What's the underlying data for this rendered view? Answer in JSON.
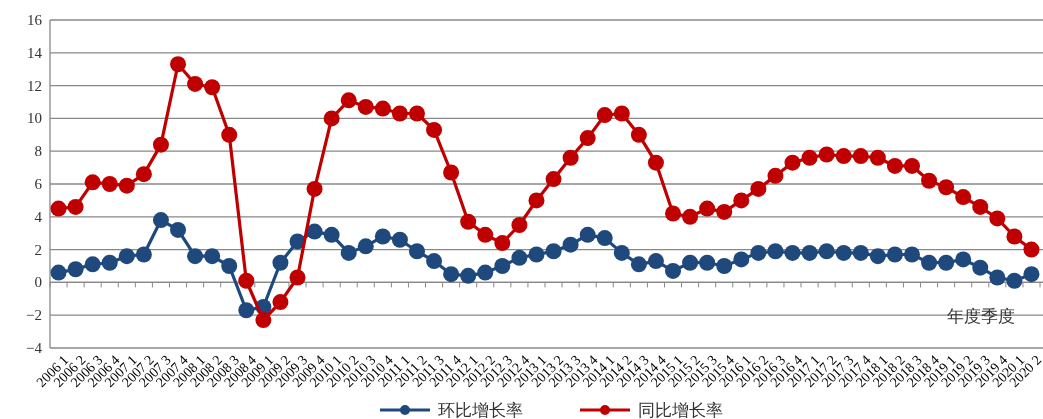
{
  "chart_data": {
    "type": "line",
    "xlabel": "年度季度",
    "categories": [
      "2006 1",
      "2006 2",
      "2006 3",
      "2006 4",
      "2007 1",
      "2007 2",
      "2007 3",
      "2007 4",
      "2008 1",
      "2008 2",
      "2008 3",
      "2008 4",
      "2009 1",
      "2009 2",
      "2009 3",
      "2009 4",
      "2010 1",
      "2010 2",
      "2010 3",
      "2010 4",
      "2011 1",
      "2011 2",
      "2011 3",
      "2011 4",
      "2012 1",
      "2012 2",
      "2012 3",
      "2012 4",
      "2013 1",
      "2013 2",
      "2013 3",
      "2013 4",
      "2014 1",
      "2014 2",
      "2014 3",
      "2014 4",
      "2015 1",
      "2015 2",
      "2015 3",
      "2015 4",
      "2016 1",
      "2016 2",
      "2016 3",
      "2016 4",
      "2017 1",
      "2017 2",
      "2017 3",
      "2017 4",
      "2018 1",
      "2018 2",
      "2018 3",
      "2018 4",
      "2019 1",
      "2019 2",
      "2019 3",
      "2019 4",
      "2020 1",
      "2020 2"
    ],
    "series": [
      {
        "name": "环比增长率",
        "color": "#1f497d",
        "values": [
          0.6,
          0.8,
          1.1,
          1.2,
          1.6,
          1.7,
          3.8,
          3.2,
          1.6,
          1.6,
          1.0,
          -1.7,
          -1.5,
          1.2,
          2.5,
          3.1,
          2.9,
          1.8,
          2.2,
          2.8,
          2.6,
          1.9,
          1.3,
          0.5,
          0.4,
          0.6,
          1.0,
          1.5,
          1.7,
          1.9,
          2.3,
          2.9,
          2.7,
          1.8,
          1.1,
          1.3,
          0.7,
          1.2,
          1.2,
          1.0,
          1.4,
          1.8,
          1.9,
          1.8,
          1.8,
          1.9,
          1.8,
          1.8,
          1.6,
          1.7,
          1.7,
          1.2,
          1.2,
          1.4,
          0.9,
          0.3,
          0.1,
          0.5
        ]
      },
      {
        "name": "同比增长率",
        "color": "#c00000",
        "values": [
          4.5,
          4.6,
          6.1,
          6.0,
          5.9,
          6.6,
          8.4,
          13.3,
          12.1,
          11.9,
          9.0,
          0.1,
          -2.3,
          -1.2,
          0.3,
          5.7,
          10.0,
          11.1,
          10.7,
          10.6,
          10.3,
          10.3,
          9.3,
          6.7,
          3.7,
          2.9,
          2.4,
          3.5,
          5.0,
          6.3,
          7.6,
          8.8,
          10.2,
          10.3,
          9.0,
          7.3,
          4.2,
          4.0,
          4.5,
          4.3,
          5.0,
          5.7,
          6.5,
          7.3,
          7.6,
          7.8,
          7.7,
          7.7,
          7.6,
          7.1,
          7.1,
          6.2,
          5.8,
          5.2,
          4.6,
          3.9,
          2.8,
          2.0
        ]
      }
    ],
    "ylim": [
      -4,
      16
    ],
    "yticks": [
      -4,
      -2,
      0,
      2,
      4,
      6,
      8,
      10,
      12,
      14,
      16
    ],
    "grid": "y",
    "legend": "bottom",
    "marker": "circle",
    "line_style": "solid"
  }
}
